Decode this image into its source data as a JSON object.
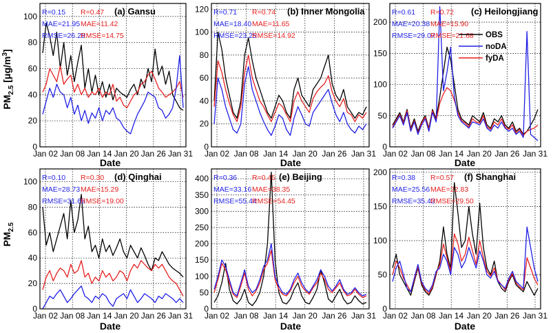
{
  "figure": {
    "ylabel_main": "PM",
    "ylabel_sub": "2.5",
    "ylabel_unit_pre": " [μg/m",
    "ylabel_unit_sup": "3",
    "ylabel_unit_post": "]",
    "xlabel": "Date"
  },
  "legend": [
    {
      "label": "OBS",
      "color": "#000000"
    },
    {
      "label": "noDA",
      "color": "#1f1fe6"
    },
    {
      "label": "fyDA",
      "color": "#e61f1f"
    }
  ],
  "chart_data": [
    {
      "type": "line",
      "title": "(a) Gansu",
      "x_ticks": [
        "Jan 02",
        "Jan 08",
        "Jan 14",
        "Jan 20",
        "Jan 26",
        "Jan 31"
      ],
      "ylim": [
        0,
        110
      ],
      "y_ticks": [
        0,
        20,
        40,
        60,
        80,
        100
      ],
      "grid": true,
      "stats": {
        "noDA": [
          "R=0.15",
          "MAE=21.95",
          "RMSE=26.28"
        ],
        "fyDA": [
          "R=0.47",
          "MAE=11.42",
          "RMSE=14.75"
        ]
      },
      "series": [
        {
          "name": "OBS",
          "values": [
            72,
            95,
            85,
            70,
            88,
            60,
            80,
            55,
            70,
            50,
            65,
            78,
            45,
            60,
            42,
            55,
            40,
            50,
            38,
            48,
            36,
            45,
            42,
            40,
            38,
            44,
            48,
            40,
            52,
            45,
            60,
            50,
            75,
            55,
            62,
            48,
            58,
            40,
            35,
            30,
            28
          ]
        },
        {
          "name": "noDA",
          "values": [
            25,
            35,
            45,
            38,
            48,
            42,
            40,
            30,
            38,
            25,
            32,
            20,
            28,
            18,
            26,
            22,
            30,
            20,
            28,
            25,
            30,
            22,
            20,
            15,
            12,
            10,
            18,
            25,
            30,
            35,
            42,
            40,
            38,
            30,
            28,
            22,
            25,
            30,
            45,
            70,
            30
          ]
        },
        {
          "name": "fyDA",
          "values": [
            42,
            48,
            60,
            55,
            50,
            62,
            48,
            52,
            55,
            42,
            48,
            40,
            45,
            38,
            42,
            40,
            45,
            38,
            42,
            40,
            48,
            35,
            38,
            32,
            30,
            35,
            40,
            42,
            48,
            50,
            55,
            58,
            52,
            45,
            42,
            38,
            40,
            42,
            45,
            50,
            38
          ]
        }
      ]
    },
    {
      "type": "line",
      "title": "(b) Inner Mongolia",
      "x_ticks": [
        "Jan 02",
        "Jan 08",
        "Jan 14",
        "Jan 20",
        "Jan 26",
        "Jan 31"
      ],
      "ylim": [
        0,
        125
      ],
      "y_ticks": [
        0,
        20,
        40,
        60,
        80,
        100,
        120
      ],
      "grid": true,
      "stats": {
        "noDA": [
          "R=0.71",
          "MAE=18.40",
          "RMSE=23.25"
        ],
        "fyDA": [
          "R=0.74",
          "MAE=11.65",
          "RMSE=14.92"
        ]
      },
      "series": [
        {
          "name": "OBS",
          "values": [
            40,
            100,
            85,
            60,
            45,
            30,
            25,
            40,
            80,
            95,
            75,
            60,
            50,
            40,
            30,
            25,
            35,
            45,
            40,
            30,
            25,
            50,
            60,
            45,
            40,
            35,
            50,
            55,
            60,
            70,
            80,
            55,
            45,
            40,
            50,
            35,
            30,
            25,
            30,
            28,
            35
          ]
        },
        {
          "name": "noDA",
          "values": [
            20,
            60,
            50,
            35,
            25,
            15,
            12,
            20,
            55,
            70,
            50,
            40,
            30,
            22,
            15,
            10,
            18,
            28,
            25,
            15,
            10,
            25,
            35,
            28,
            20,
            18,
            30,
            35,
            40,
            45,
            50,
            38,
            28,
            22,
            30,
            20,
            15,
            12,
            18,
            15,
            20
          ]
        },
        {
          "name": "fyDA",
          "values": [
            35,
            75,
            65,
            50,
            38,
            28,
            22,
            35,
            65,
            80,
            60,
            50,
            40,
            35,
            28,
            22,
            30,
            38,
            35,
            28,
            22,
            40,
            48,
            40,
            35,
            30,
            42,
            48,
            52,
            55,
            62,
            48,
            40,
            35,
            42,
            30,
            28,
            22,
            28,
            25,
            30
          ]
        }
      ]
    },
    {
      "type": "line",
      "title": "(c) Heilongjiang",
      "x_ticks": [
        "Jan 02",
        "Jan 08",
        "Jan 14",
        "Jan 20",
        "Jan 26",
        "Jan 31"
      ],
      "ylim": [
        0,
        230
      ],
      "y_ticks": [
        0,
        50,
        100,
        150,
        200
      ],
      "grid": true,
      "stats": {
        "noDA": [
          "R=0.61",
          "MAE=20.38",
          "RMSE=29.07"
        ],
        "fyDA": [
          "R=0.72",
          "MAE=15.90",
          "RMSE=21.68"
        ]
      },
      "series": [
        {
          "name": "OBS",
          "values": [
            35,
            45,
            55,
            40,
            60,
            30,
            45,
            25,
            40,
            50,
            30,
            60,
            45,
            80,
            120,
            160,
            140,
            100,
            60,
            45,
            40,
            35,
            50,
            45,
            40,
            55,
            35,
            30,
            45,
            40,
            50,
            35,
            30,
            40,
            25,
            30,
            20,
            25,
            35,
            45,
            60
          ]
        },
        {
          "name": "noDA",
          "values": [
            30,
            40,
            50,
            35,
            55,
            25,
            40,
            20,
            35,
            45,
            25,
            55,
            40,
            225,
            90,
            120,
            160,
            80,
            50,
            40,
            35,
            30,
            40,
            38,
            35,
            45,
            30,
            25,
            35,
            30,
            40,
            30,
            25,
            30,
            20,
            25,
            15,
            185,
            20,
            15,
            10
          ]
        },
        {
          "name": "fyDA",
          "values": [
            32,
            42,
            52,
            38,
            58,
            28,
            42,
            22,
            38,
            48,
            28,
            58,
            42,
            70,
            85,
            95,
            90,
            75,
            55,
            42,
            38,
            32,
            45,
            40,
            38,
            50,
            32,
            28,
            40,
            35,
            45,
            32,
            28,
            35,
            22,
            28,
            18,
            25,
            28,
            30,
            35
          ]
        }
      ]
    },
    {
      "type": "line",
      "title": "(d) Qinghai",
      "x_ticks": [
        "Jan 02",
        "Jan 08",
        "Jan 14",
        "Jan 20",
        "Jan 26",
        "Jan 31"
      ],
      "ylim": [
        0,
        110
      ],
      "y_ticks": [
        0,
        20,
        40,
        60,
        80,
        100
      ],
      "grid": true,
      "stats": {
        "noDA": [
          "R=0.10",
          "MAE=28.73",
          "RMSE=31.65"
        ],
        "fyDA": [
          "R=0.30",
          "MAE=15.29",
          "RMSE=19.00"
        ]
      },
      "series": [
        {
          "name": "OBS",
          "values": [
            80,
            50,
            60,
            45,
            55,
            65,
            75,
            55,
            85,
            60,
            70,
            90,
            55,
            65,
            45,
            50,
            40,
            55,
            45,
            50,
            42,
            48,
            55,
            45,
            40,
            50,
            45,
            40,
            48,
            42,
            35,
            30,
            40,
            38,
            45,
            40,
            35,
            32,
            30,
            28,
            25
          ]
        },
        {
          "name": "noDA",
          "values": [
            0,
            5,
            10,
            8,
            12,
            15,
            10,
            5,
            8,
            12,
            15,
            18,
            10,
            8,
            5,
            10,
            8,
            12,
            10,
            5,
            2,
            8,
            10,
            12,
            8,
            15,
            10,
            5,
            8,
            12,
            10,
            8,
            5,
            10,
            8,
            12,
            10,
            8,
            5,
            8,
            5
          ]
        },
        {
          "name": "fyDA",
          "values": [
            15,
            25,
            30,
            22,
            28,
            32,
            30,
            25,
            35,
            28,
            30,
            38,
            25,
            28,
            20,
            25,
            22,
            30,
            25,
            28,
            22,
            25,
            30,
            28,
            22,
            30,
            35,
            32,
            38,
            35,
            32,
            30,
            35,
            32,
            35,
            30,
            25,
            22,
            20,
            15,
            10
          ]
        }
      ]
    },
    {
      "type": "line",
      "title": "(e) Beijing",
      "x_ticks": [
        "Jan 02",
        "Jan 08",
        "Jan 14",
        "Jan 20",
        "Jan 26",
        "Jan 31"
      ],
      "ylim": [
        0,
        430
      ],
      "y_ticks": [
        0,
        50,
        100,
        150,
        200,
        250,
        300,
        350,
        400
      ],
      "grid": true,
      "stats": {
        "noDA": [
          "R=0.36",
          "MAE=33.16",
          "RMSE=55.44"
        ],
        "fyDA": [
          "R=0.45",
          "MAE=38.35",
          "RMSE=54.45"
        ]
      },
      "series": [
        {
          "name": "OBS",
          "values": [
            20,
            40,
            80,
            140,
            60,
            25,
            15,
            30,
            60,
            20,
            10,
            25,
            50,
            100,
            200,
            420,
            150,
            50,
            20,
            15,
            30,
            60,
            80,
            40,
            20,
            15,
            35,
            60,
            120,
            80,
            30,
            20,
            40,
            60,
            30,
            15,
            20,
            40,
            25,
            15,
            20
          ]
        },
        {
          "name": "noDA",
          "values": [
            60,
            100,
            150,
            130,
            90,
            50,
            40,
            80,
            120,
            70,
            50,
            60,
            90,
            130,
            150,
            200,
            100,
            70,
            50,
            45,
            60,
            90,
            110,
            80,
            60,
            50,
            70,
            90,
            120,
            100,
            70,
            55,
            70,
            90,
            60,
            45,
            50,
            65,
            50,
            40,
            45
          ]
        },
        {
          "name": "fyDA",
          "values": [
            50,
            90,
            140,
            120,
            80,
            45,
            35,
            70,
            110,
            60,
            40,
            55,
            80,
            120,
            140,
            180,
            90,
            60,
            45,
            40,
            55,
            80,
            100,
            70,
            55,
            45,
            65,
            80,
            110,
            90,
            60,
            50,
            65,
            80,
            55,
            40,
            45,
            60,
            45,
            35,
            40
          ]
        }
      ]
    },
    {
      "type": "line",
      "title": "(f) Shanghai",
      "x_ticks": [
        "Jan 02",
        "Jan 08",
        "Jan 14",
        "Jan 20",
        "Jan 26",
        "Jan 31"
      ],
      "ylim": [
        0,
        205
      ],
      "y_ticks": [
        0,
        50,
        100,
        150,
        200
      ],
      "grid": true,
      "stats": {
        "noDA": [
          "R=0.38",
          "MAE=25.56",
          "RMSE=35.43"
        ],
        "fyDA": [
          "R=0.57",
          "MAE=22.83",
          "RMSE=29.50"
        ]
      },
      "series": [
        {
          "name": "OBS",
          "values": [
            60,
            80,
            50,
            40,
            30,
            20,
            40,
            60,
            35,
            25,
            20,
            30,
            50,
            70,
            120,
            80,
            60,
            185,
            140,
            90,
            100,
            150,
            110,
            80,
            155,
            90,
            60,
            50,
            70,
            40,
            30,
            25,
            40,
            50,
            35,
            30,
            25,
            40,
            30,
            20,
            30
          ]
        },
        {
          "name": "noDA",
          "values": [
            40,
            60,
            70,
            50,
            30,
            25,
            45,
            65,
            40,
            30,
            25,
            35,
            55,
            60,
            80,
            70,
            50,
            90,
            80,
            60,
            70,
            90,
            75,
            60,
            85,
            70,
            50,
            45,
            55,
            40,
            35,
            30,
            45,
            55,
            40,
            35,
            30,
            120,
            90,
            60,
            40
          ]
        },
        {
          "name": "fyDA",
          "values": [
            50,
            70,
            60,
            45,
            35,
            25,
            42,
            62,
            38,
            28,
            22,
            32,
            52,
            65,
            95,
            75,
            55,
            110,
            95,
            70,
            80,
            105,
            85,
            65,
            100,
            75,
            55,
            48,
            60,
            42,
            35,
            28,
            42,
            52,
            38,
            32,
            28,
            75,
            60,
            45,
            35
          ]
        }
      ]
    }
  ]
}
